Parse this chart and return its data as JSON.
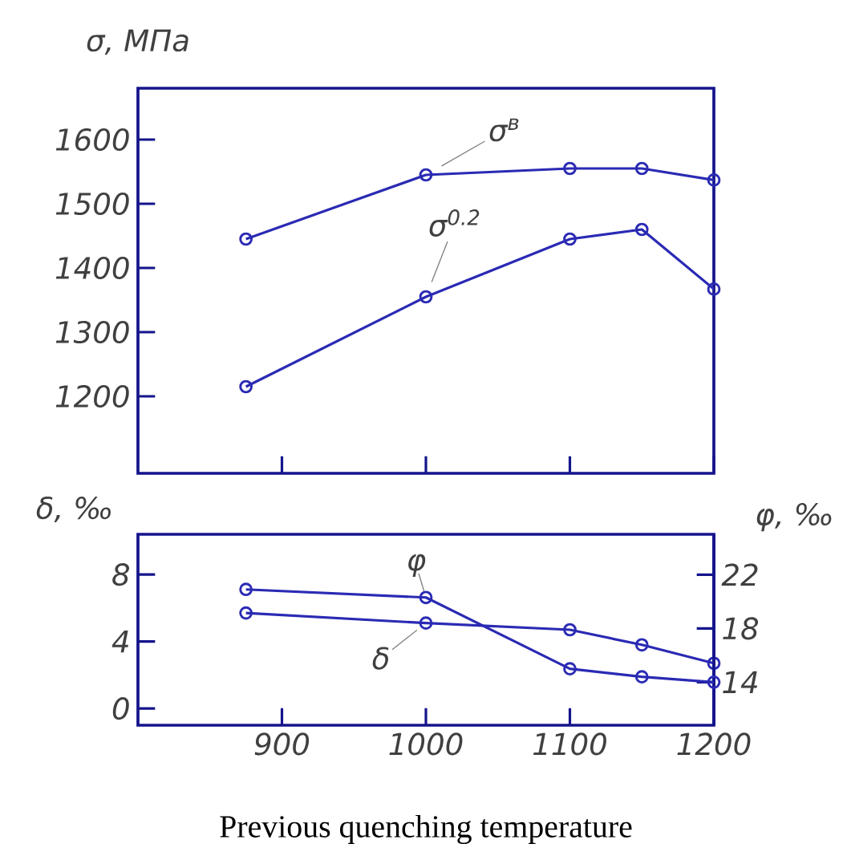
{
  "chart_data": [
    {
      "type": "line",
      "ylabel": "σ, МПа",
      "x": [
        875,
        1000,
        1100,
        1150,
        1200
      ],
      "series": [
        {
          "name": "σ$^{в}$",
          "color": "#2a2ab4",
          "values": [
            1445,
            1545,
            1555,
            1555,
            1537
          ]
        },
        {
          "name": "σ$^{0.2}$",
          "color": "#2a2ab4",
          "values": [
            1215,
            1355,
            1445,
            1460,
            1367
          ]
        }
      ],
      "xlim": [
        800,
        1200
      ],
      "ylim": [
        1080,
        1680
      ],
      "xticks": [
        900,
        1000,
        1100,
        1200
      ],
      "yticks": [
        1200,
        1300,
        1400,
        1500,
        1600
      ],
      "marker": "circle",
      "tick_labels": "y"
    },
    {
      "type": "line",
      "xlabel": "Previous quenching temperature",
      "ylabel": "δ, ‰",
      "y2label": "φ, ‰",
      "x": [
        875,
        1000,
        1100,
        1150,
        1200
      ],
      "series": [
        {
          "name": "δ",
          "color": "#2a2ab4",
          "values": [
            5.7,
            5.1,
            4.7,
            3.8,
            2.7
          ]
        },
        {
          "name": "φ",
          "color": "#2a2ab4",
          "axis": "y2",
          "values": [
            20.9,
            20.3,
            15.0,
            14.4,
            14.0
          ]
        }
      ],
      "xlim": [
        800,
        1200
      ],
      "ylim": [
        -1,
        10.4
      ],
      "y2lim": [
        10.8,
        25
      ],
      "xticks": [
        900,
        1000,
        1100,
        1200
      ],
      "yticks": [
        0,
        4,
        8
      ],
      "y2ticks": [
        14,
        18,
        22
      ],
      "marker": "circle"
    }
  ]
}
